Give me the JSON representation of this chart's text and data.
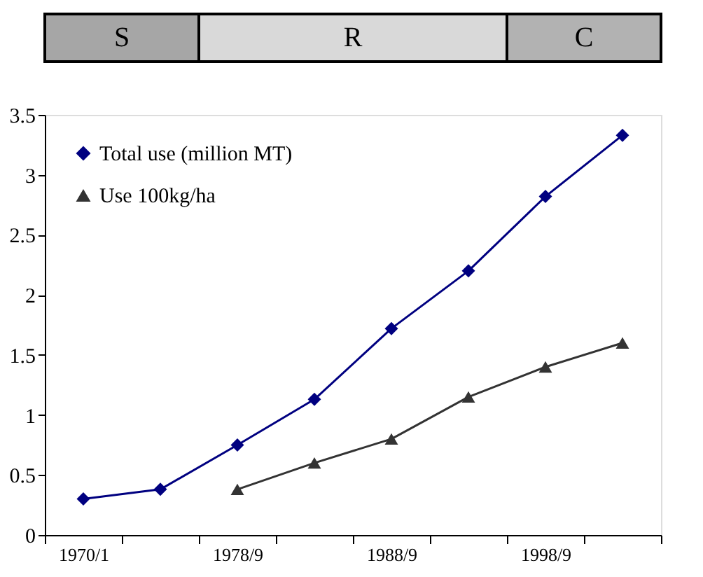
{
  "chart_data": {
    "type": "line",
    "annotations": [
      "S",
      "R",
      "C"
    ],
    "categories": [
      "1970/1",
      null,
      "1978/9",
      null,
      "1988/9",
      null,
      "1998/9",
      null
    ],
    "series": [
      {
        "name": "Total use (million MT)",
        "color": "#000080",
        "marker": "diamond",
        "values": [
          0.3,
          0.38,
          0.75,
          1.13,
          1.72,
          2.2,
          2.82,
          3.33
        ]
      },
      {
        "name": "Use 100kg/ha",
        "color": "#333333",
        "marker": "triangle",
        "values": [
          null,
          null,
          0.38,
          0.6,
          0.8,
          1.15,
          1.4,
          1.6
        ]
      }
    ],
    "ylim": [
      0,
      3.5
    ],
    "yticks": [
      0,
      0.5,
      1,
      1.5,
      2,
      2.5,
      3,
      3.5
    ],
    "grid": false,
    "legend": "top left",
    "line_style": "solid"
  }
}
